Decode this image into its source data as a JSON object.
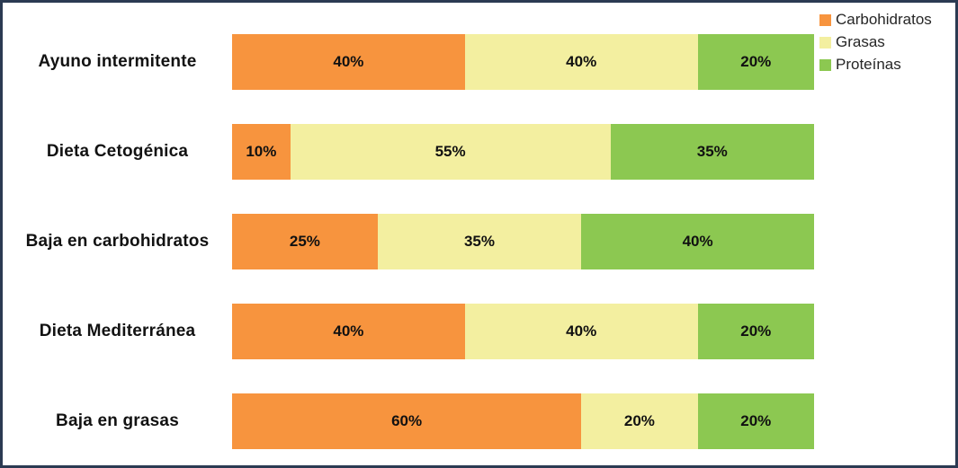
{
  "chart_data": {
    "type": "bar",
    "orientation": "horizontal",
    "stacked": true,
    "title": "",
    "xlabel": "",
    "ylabel": "",
    "xlim": [
      0,
      100
    ],
    "grid": false,
    "legend_position": "top-right",
    "value_label_format": "{v}%",
    "categories": [
      "Ayuno intermitente",
      "Dieta Cetogénica",
      "Baja en carbohidratos",
      "Dieta Mediterránea",
      "Baja en grasas"
    ],
    "series": [
      {
        "name": "Carbohidratos",
        "color": "#F7943E",
        "values": [
          40,
          10,
          25,
          40,
          60
        ]
      },
      {
        "name": "Grasas",
        "color": "#F3EFA0",
        "values": [
          40,
          55,
          35,
          40,
          20
        ]
      },
      {
        "name": "Proteínas",
        "color": "#8CC851",
        "values": [
          20,
          35,
          40,
          20,
          20
        ]
      }
    ]
  },
  "frame": {
    "border_color": "#2B3A52",
    "background_color": "#FFFFFF"
  }
}
